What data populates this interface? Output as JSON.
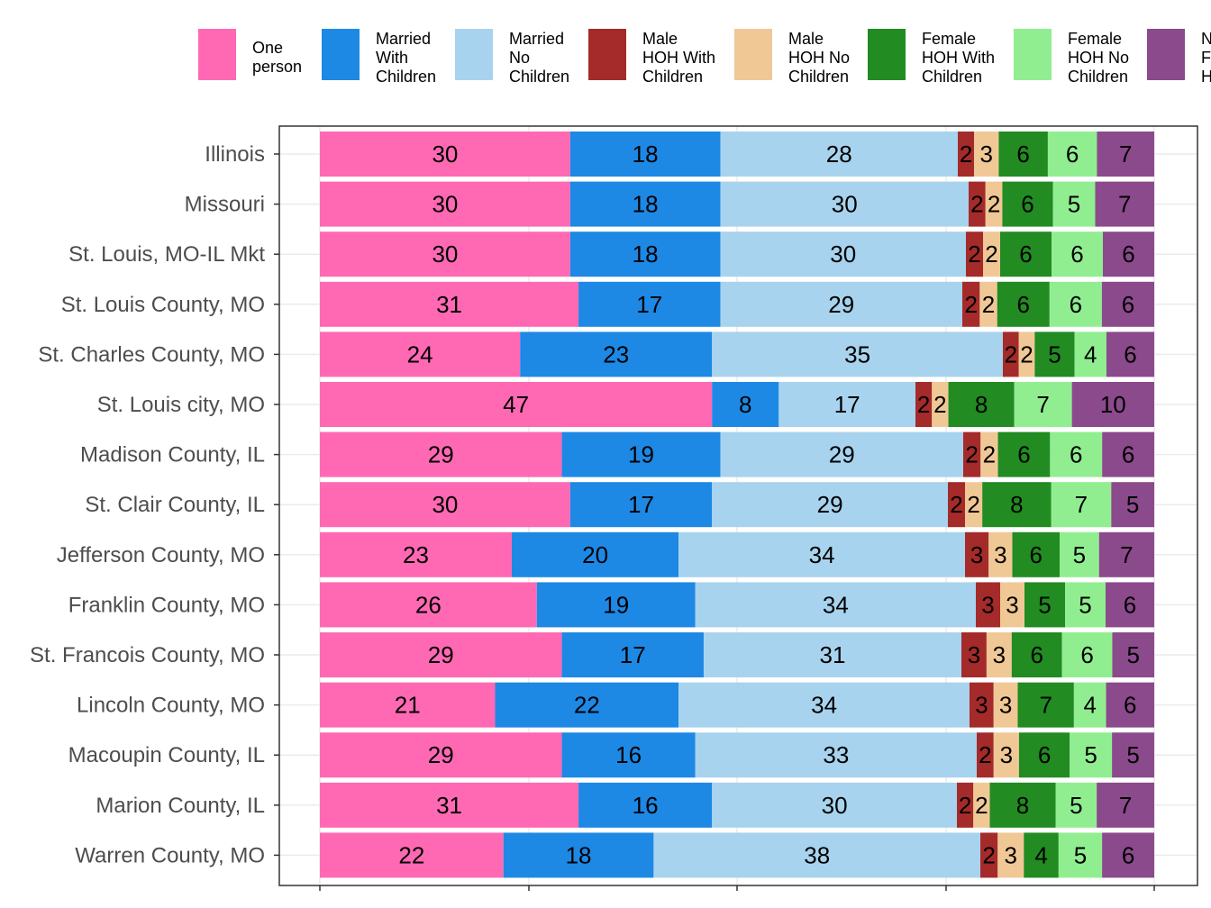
{
  "chart_data": {
    "type": "bar",
    "orientation": "horizontal",
    "stacked": true,
    "title": "",
    "xlabel": "",
    "ylabel": "",
    "xlim": [
      0,
      100
    ],
    "grid": true,
    "legend_position": "top",
    "categories": [
      "Illinois",
      "Missouri",
      "St. Louis, MO-IL Mkt",
      "St. Louis County, MO",
      "St. Charles County, MO",
      "St. Louis city, MO",
      "Madison County, IL",
      "St. Clair County, IL",
      "Jefferson County, MO",
      "Franklin County, MO",
      "St. Francois County, MO",
      "Lincoln County, MO",
      "Macoupin County, IL",
      "Marion County, IL",
      "Warren County, MO"
    ],
    "series": [
      {
        "name": "One person",
        "legend_lines": [
          "One",
          "person"
        ],
        "color": "#FF69B4",
        "values": [
          30,
          30,
          30,
          31,
          24,
          47,
          29,
          30,
          23,
          26,
          29,
          21,
          29,
          31,
          22
        ]
      },
      {
        "name": "Married With Children",
        "legend_lines": [
          "Married",
          "With",
          "Children"
        ],
        "color": "#1E88E5",
        "values": [
          18,
          18,
          18,
          17,
          23,
          8,
          19,
          17,
          20,
          19,
          17,
          22,
          16,
          16,
          18
        ]
      },
      {
        "name": "Married No Children",
        "legend_lines": [
          "Married",
          "No",
          "Children"
        ],
        "color": "#A8D3EE",
        "values": [
          28,
          30,
          30,
          29,
          35,
          17,
          29,
          29,
          34,
          34,
          31,
          34,
          33,
          30,
          38
        ]
      },
      {
        "name": "Male HOH With Children",
        "legend_lines": [
          "Male",
          "HOH With",
          "Children"
        ],
        "color": "#A52A2A",
        "values": [
          2,
          2,
          2,
          2,
          2,
          2,
          2,
          2,
          3,
          3,
          3,
          3,
          2,
          2,
          2
        ]
      },
      {
        "name": "Male HOH No Children",
        "legend_lines": [
          "Male",
          "HOH No",
          "Children"
        ],
        "color": "#F0C896",
        "values": [
          3,
          2,
          2,
          2,
          2,
          2,
          2,
          2,
          3,
          3,
          3,
          3,
          3,
          2,
          3
        ]
      },
      {
        "name": "Female HOH With Children",
        "legend_lines": [
          "Female",
          "HOH With",
          "Children"
        ],
        "color": "#228B22",
        "values": [
          6,
          6,
          6,
          6,
          5,
          8,
          6,
          8,
          6,
          5,
          6,
          7,
          6,
          8,
          4
        ]
      },
      {
        "name": "Female HOH No Children",
        "legend_lines": [
          "Female",
          "HOH No",
          "Children"
        ],
        "color": "#90EE90",
        "values": [
          6,
          5,
          6,
          6,
          4,
          7,
          6,
          7,
          5,
          5,
          6,
          4,
          5,
          5,
          5
        ]
      },
      {
        "name": "N F H",
        "legend_lines": [
          "N",
          "F",
          "H"
        ],
        "color": "#8B4A8B",
        "values": [
          7,
          7,
          6,
          6,
          6,
          10,
          6,
          5,
          7,
          6,
          5,
          6,
          5,
          7,
          6
        ]
      }
    ],
    "bar_extent": [
      [
        1063,
        1281
      ],
      [
        1075,
        1281
      ],
      [
        1072,
        1281
      ],
      [
        1068,
        1281
      ],
      [
        1113,
        1281
      ],
      [
        1016,
        1281
      ],
      [
        1069,
        1281
      ],
      [
        1052,
        1281
      ],
      [
        1071,
        1281
      ],
      [
        1083,
        1281
      ],
      [
        1067,
        1281
      ],
      [
        1076,
        1281
      ],
      [
        1084,
        1281
      ],
      [
        1062,
        1281
      ],
      [
        1088,
        1281
      ]
    ]
  }
}
